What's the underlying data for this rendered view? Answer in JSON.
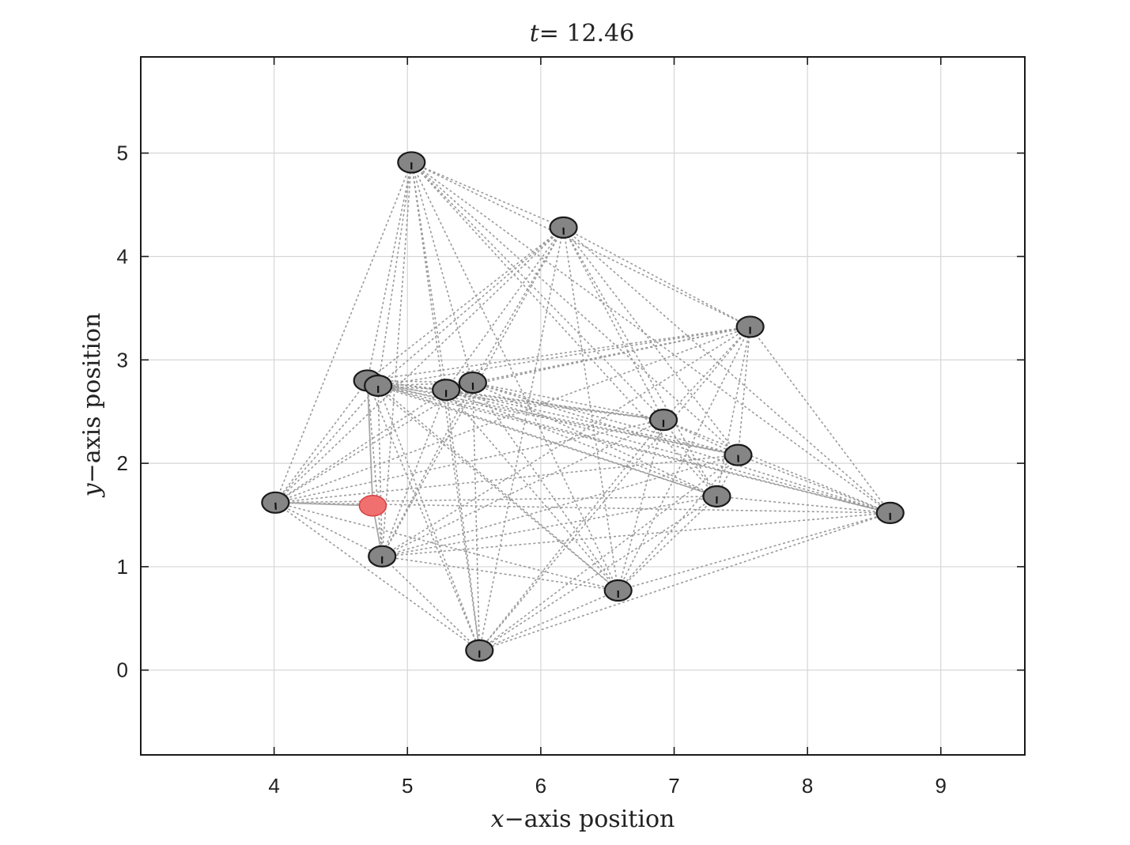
{
  "chart_data": {
    "type": "scatter",
    "title": "t= 12.46",
    "title_var": "t",
    "title_value": "= 12.46",
    "xlabel": "x−axis position",
    "xlabel_var": "x",
    "xlabel_rest": "−axis position",
    "ylabel": "y−axis position",
    "ylabel_var": "y",
    "ylabel_rest": "−axis position",
    "xlim": [
      3.0,
      9.63
    ],
    "ylim": [
      -0.82,
      5.93
    ],
    "xticks": [
      4,
      5,
      6,
      7,
      8,
      9
    ],
    "yticks": [
      0,
      1,
      2,
      3,
      4,
      5
    ],
    "grid": true,
    "agent_color": "#858585",
    "leader_color": "#f07070",
    "edge_color": "#9a9a9a",
    "agents": [
      {
        "id": 0,
        "x": 5.03,
        "y": 4.91,
        "heading": 1.57
      },
      {
        "id": 1,
        "x": 6.17,
        "y": 4.28,
        "heading": 1.5
      },
      {
        "id": 2,
        "x": 7.57,
        "y": 3.32,
        "heading": 1.6
      },
      {
        "id": 3,
        "x": 4.7,
        "y": 2.8,
        "heading": 1.2
      },
      {
        "id": 4,
        "x": 4.78,
        "y": 2.75,
        "heading": 1.55
      },
      {
        "id": 5,
        "x": 5.29,
        "y": 2.71,
        "heading": 1.6
      },
      {
        "id": 6,
        "x": 5.49,
        "y": 2.78,
        "heading": 1.5
      },
      {
        "id": 7,
        "x": 6.92,
        "y": 2.42,
        "heading": 1.6
      },
      {
        "id": 8,
        "x": 7.48,
        "y": 2.08,
        "heading": 1.5
      },
      {
        "id": 9,
        "x": 7.32,
        "y": 1.68,
        "heading": 1.6
      },
      {
        "id": 10,
        "x": 8.62,
        "y": 1.52,
        "heading": 1.55
      },
      {
        "id": 11,
        "x": 4.01,
        "y": 1.62,
        "heading": 1.4
      },
      {
        "id": 12,
        "x": 4.81,
        "y": 1.1,
        "heading": 1.6
      },
      {
        "id": 13,
        "x": 6.58,
        "y": 0.77,
        "heading": 1.55
      },
      {
        "id": 14,
        "x": 5.54,
        "y": 0.19,
        "heading": 1.6
      }
    ],
    "leader": {
      "x": 4.74,
      "y": 1.59
    }
  }
}
